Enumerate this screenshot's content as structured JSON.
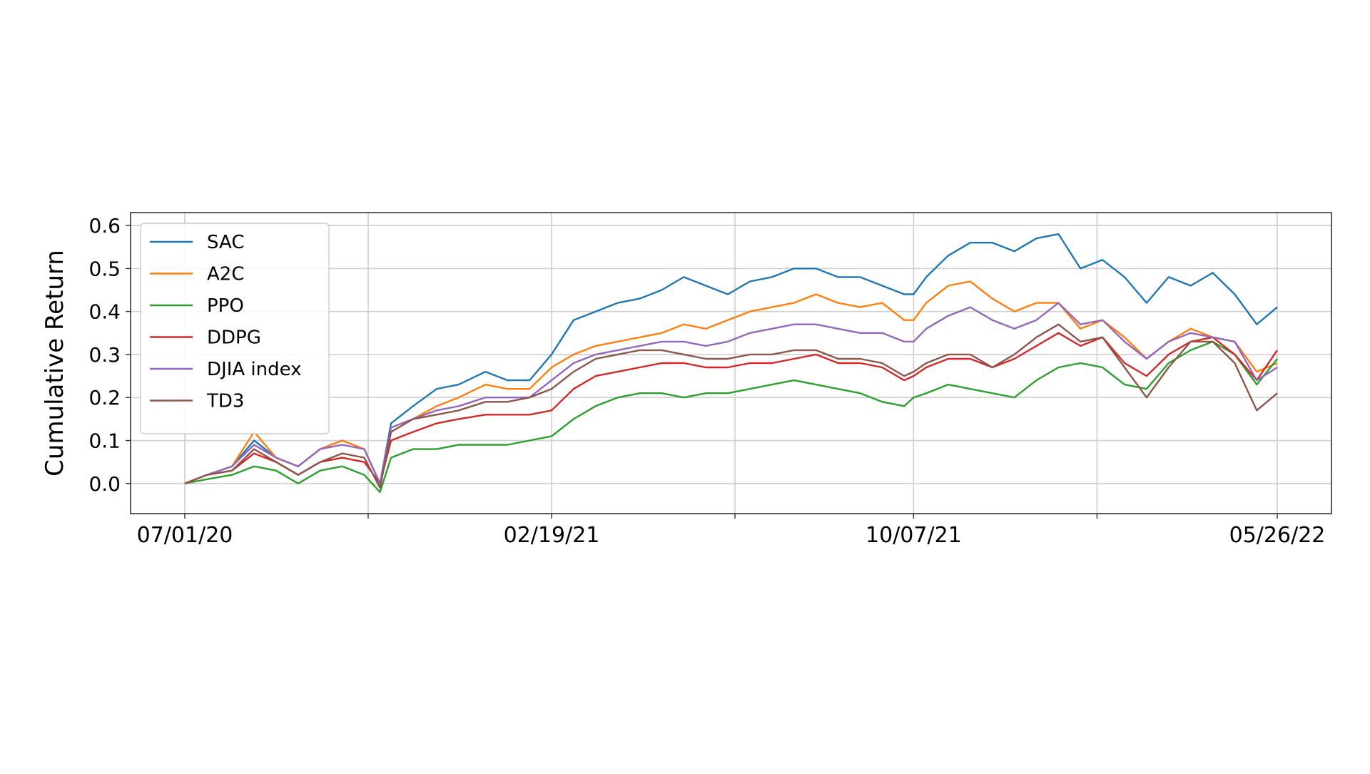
{
  "chart_data": {
    "type": "line",
    "ylabel": "Cumulative Return",
    "xlabel": "",
    "title": "",
    "x_tick_labels": [
      "07/01/20",
      "02/19/21",
      "10/07/21",
      "05/26/22"
    ],
    "x_range": [
      "07/01/20",
      "06/01/22"
    ],
    "y_ticks": [
      "0.0",
      "0.1",
      "0.2",
      "0.3",
      "0.4",
      "0.5",
      "0.6"
    ],
    "ylim": [
      -0.07,
      0.63
    ],
    "grid": true,
    "legend_position": "top-left",
    "x": [
      "07/01/20",
      "07/15/20",
      "07/31/20",
      "08/14/20",
      "08/28/20",
      "09/11/20",
      "09/25/20",
      "10/09/20",
      "10/23/20",
      "11/02/20",
      "11/09/20",
      "11/23/20",
      "12/08/20",
      "12/22/20",
      "01/08/21",
      "01/22/21",
      "02/05/21",
      "02/19/21",
      "03/05/21",
      "03/19/21",
      "04/02/21",
      "04/16/21",
      "04/30/21",
      "05/14/21",
      "05/28/21",
      "06/11/21",
      "06/25/21",
      "07/09/21",
      "07/23/21",
      "08/06/21",
      "08/20/21",
      "09/03/21",
      "09/17/21",
      "10/01/21",
      "10/07/21",
      "10/15/21",
      "10/29/21",
      "11/12/21",
      "11/26/21",
      "12/10/21",
      "12/24/21",
      "01/07/22",
      "01/21/22",
      "02/04/22",
      "02/18/22",
      "03/04/22",
      "03/18/22",
      "04/01/22",
      "04/15/22",
      "04/29/22",
      "05/13/22",
      "05/26/22"
    ],
    "series": [
      {
        "name": "SAC",
        "color": "#1f77b4",
        "values": [
          0.0,
          0.02,
          0.04,
          0.1,
          0.06,
          0.04,
          0.08,
          0.1,
          0.08,
          0.0,
          0.14,
          0.18,
          0.22,
          0.23,
          0.26,
          0.24,
          0.24,
          0.3,
          0.38,
          0.4,
          0.42,
          0.43,
          0.45,
          0.48,
          0.46,
          0.44,
          0.47,
          0.48,
          0.5,
          0.5,
          0.48,
          0.48,
          0.46,
          0.44,
          0.44,
          0.48,
          0.53,
          0.56,
          0.56,
          0.54,
          0.57,
          0.58,
          0.5,
          0.52,
          0.48,
          0.42,
          0.48,
          0.46,
          0.49,
          0.44,
          0.37,
          0.41
        ]
      },
      {
        "name": "A2C",
        "color": "#ff7f0e",
        "values": [
          0.0,
          0.02,
          0.04,
          0.12,
          0.06,
          0.04,
          0.08,
          0.1,
          0.08,
          0.0,
          0.12,
          0.15,
          0.18,
          0.2,
          0.23,
          0.22,
          0.22,
          0.27,
          0.3,
          0.32,
          0.33,
          0.34,
          0.35,
          0.37,
          0.36,
          0.38,
          0.4,
          0.41,
          0.42,
          0.44,
          0.42,
          0.41,
          0.42,
          0.38,
          0.38,
          0.42,
          0.46,
          0.47,
          0.43,
          0.4,
          0.42,
          0.42,
          0.36,
          0.38,
          0.34,
          0.29,
          0.33,
          0.36,
          0.34,
          0.33,
          0.26,
          0.28
        ]
      },
      {
        "name": "PPO",
        "color": "#2ca02c",
        "values": [
          0.0,
          0.01,
          0.02,
          0.04,
          0.03,
          0.0,
          0.03,
          0.04,
          0.02,
          -0.02,
          0.06,
          0.08,
          0.08,
          0.09,
          0.09,
          0.09,
          0.1,
          0.11,
          0.15,
          0.18,
          0.2,
          0.21,
          0.21,
          0.2,
          0.21,
          0.21,
          0.22,
          0.23,
          0.24,
          0.23,
          0.22,
          0.21,
          0.19,
          0.18,
          0.2,
          0.21,
          0.23,
          0.22,
          0.21,
          0.2,
          0.24,
          0.27,
          0.28,
          0.27,
          0.23,
          0.22,
          0.28,
          0.31,
          0.33,
          0.3,
          0.23,
          0.29
        ]
      },
      {
        "name": "DDPG",
        "color": "#d62728",
        "values": [
          0.0,
          0.02,
          0.03,
          0.07,
          0.05,
          0.02,
          0.05,
          0.06,
          0.05,
          0.0,
          0.1,
          0.12,
          0.14,
          0.15,
          0.16,
          0.16,
          0.16,
          0.17,
          0.22,
          0.25,
          0.26,
          0.27,
          0.28,
          0.28,
          0.27,
          0.27,
          0.28,
          0.28,
          0.29,
          0.3,
          0.28,
          0.28,
          0.27,
          0.24,
          0.25,
          0.27,
          0.29,
          0.29,
          0.27,
          0.29,
          0.32,
          0.35,
          0.32,
          0.34,
          0.28,
          0.25,
          0.3,
          0.33,
          0.34,
          0.3,
          0.24,
          0.31
        ]
      },
      {
        "name": "DJIA index",
        "color": "#9467bd",
        "values": [
          0.0,
          0.02,
          0.04,
          0.09,
          0.06,
          0.04,
          0.08,
          0.09,
          0.08,
          0.0,
          0.13,
          0.15,
          0.17,
          0.18,
          0.2,
          0.2,
          0.2,
          0.24,
          0.28,
          0.3,
          0.31,
          0.32,
          0.33,
          0.33,
          0.32,
          0.33,
          0.35,
          0.36,
          0.37,
          0.37,
          0.36,
          0.35,
          0.35,
          0.33,
          0.33,
          0.36,
          0.39,
          0.41,
          0.38,
          0.36,
          0.38,
          0.42,
          0.37,
          0.38,
          0.33,
          0.29,
          0.33,
          0.35,
          0.34,
          0.33,
          0.24,
          0.27
        ]
      },
      {
        "name": "TD3",
        "color": "#8c564b",
        "values": [
          0.0,
          0.02,
          0.03,
          0.08,
          0.05,
          0.02,
          0.05,
          0.07,
          0.06,
          -0.01,
          0.12,
          0.15,
          0.16,
          0.17,
          0.19,
          0.19,
          0.2,
          0.22,
          0.26,
          0.29,
          0.3,
          0.31,
          0.31,
          0.3,
          0.29,
          0.29,
          0.3,
          0.3,
          0.31,
          0.31,
          0.29,
          0.29,
          0.28,
          0.25,
          0.26,
          0.28,
          0.3,
          0.3,
          0.27,
          0.3,
          0.34,
          0.37,
          0.33,
          0.34,
          0.27,
          0.2,
          0.27,
          0.33,
          0.33,
          0.28,
          0.17,
          0.21
        ]
      }
    ]
  }
}
